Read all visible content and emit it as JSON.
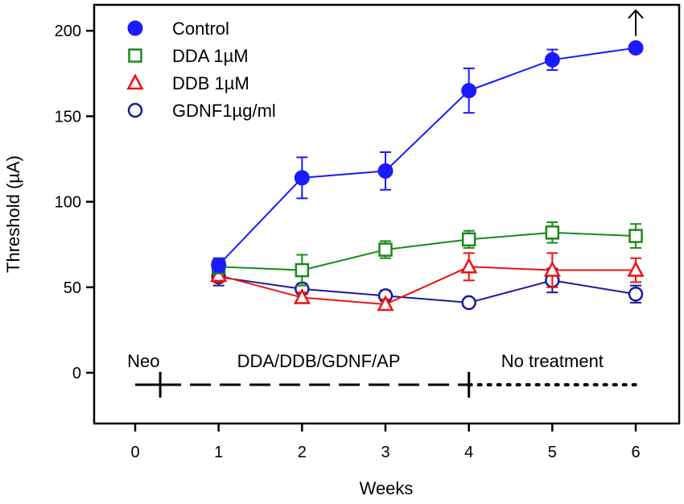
{
  "chart_data": {
    "type": "line",
    "title": "",
    "xlabel": "Weeks",
    "ylabel": "Threshold (µA)",
    "xlim": [
      -0.5,
      6.5
    ],
    "ylim": [
      -30,
      215
    ],
    "x_ticks": [
      0,
      1,
      2,
      3,
      4,
      5,
      6
    ],
    "y_ticks": [
      0,
      50,
      100,
      150,
      200
    ],
    "grid": false,
    "legend_position": "top-left",
    "series": [
      {
        "name": "Control",
        "color": "#1a1aff",
        "marker": "circle-filled",
        "x": [
          1,
          2,
          3,
          4,
          5,
          6
        ],
        "y": [
          63,
          114,
          118,
          165,
          183,
          190
        ],
        "err": [
          4,
          12,
          11,
          13,
          6,
          2
        ]
      },
      {
        "name": "DDA 1µM",
        "color": "#1a8a1a",
        "marker": "square-open",
        "x": [
          1,
          2,
          3,
          4,
          5,
          6
        ],
        "y": [
          62,
          60,
          72,
          78,
          82,
          80
        ],
        "err": [
          4,
          9,
          5,
          5,
          6,
          7
        ]
      },
      {
        "name": "DDB 1µM",
        "color": "#ee1111",
        "marker": "triangle-open",
        "x": [
          1,
          2,
          3,
          4,
          5,
          6
        ],
        "y": [
          57,
          44,
          40,
          62,
          60,
          60
        ],
        "err": [
          4,
          3,
          3,
          8,
          10,
          7
        ]
      },
      {
        "name": "GDNF1µg/ml",
        "color": "#1a1a99",
        "marker": "circle-open",
        "x": [
          1,
          2,
          3,
          4,
          5,
          6
        ],
        "y": [
          56,
          49,
          45,
          41,
          54,
          46
        ],
        "err": [
          5,
          3,
          3,
          2,
          7,
          5
        ]
      }
    ],
    "annotations": {
      "arrow_up": {
        "x": 6,
        "y_from": 197,
        "y_to": 212,
        "label": ""
      },
      "timeline_y": -7,
      "phases": [
        {
          "label": "Neo",
          "x_from": 0,
          "x_to": 0.3,
          "style": "solid-bar",
          "label_x": 0.1
        },
        {
          "label": "DDA/DDB/GDNF/AP",
          "x_from": 0.3,
          "x_to": 4,
          "style": "dashed",
          "label_x": 2.2
        },
        {
          "label": "No treatment",
          "x_from": 4,
          "x_to": 6,
          "style": "dotted",
          "label_x": 5.0
        }
      ]
    }
  }
}
